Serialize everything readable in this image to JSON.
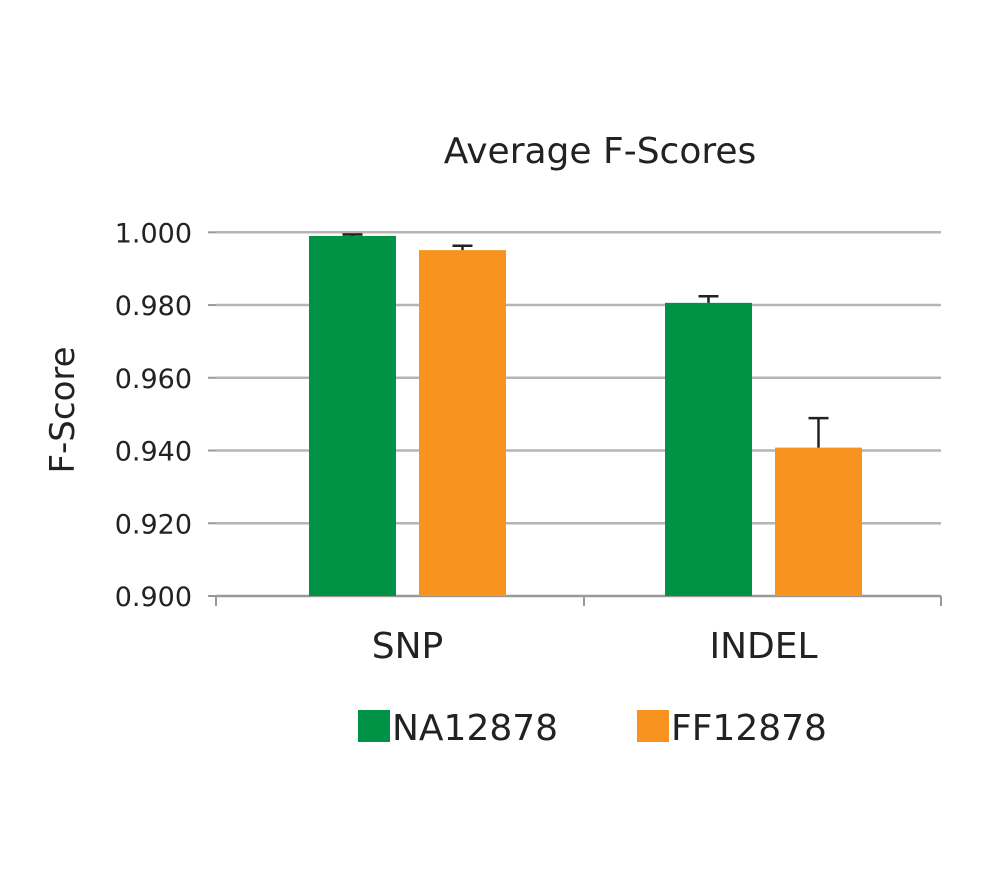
{
  "chart_data": {
    "type": "bar",
    "title": "Average F-Scores",
    "xlabel": "",
    "ylabel": "F-Score",
    "ylim": [
      0.9,
      1.0
    ],
    "yticks": [
      "0.900",
      "0.920",
      "0.940",
      "0.960",
      "0.980",
      "1.000"
    ],
    "ytick_values": [
      0.9,
      0.92,
      0.94,
      0.96,
      0.98,
      1.0
    ],
    "grid": true,
    "legend_position": "bottom",
    "categories": [
      "SNP",
      "INDEL"
    ],
    "series": [
      {
        "name": "NA12878",
        "color": "#009245",
        "values": [
          0.999,
          0.9806
        ],
        "error": [
          0.0004,
          0.0018
        ]
      },
      {
        "name": "FF12878",
        "color": "#F7931E",
        "values": [
          0.9951,
          0.9408
        ],
        "error": [
          0.0012,
          0.0081
        ]
      }
    ]
  }
}
